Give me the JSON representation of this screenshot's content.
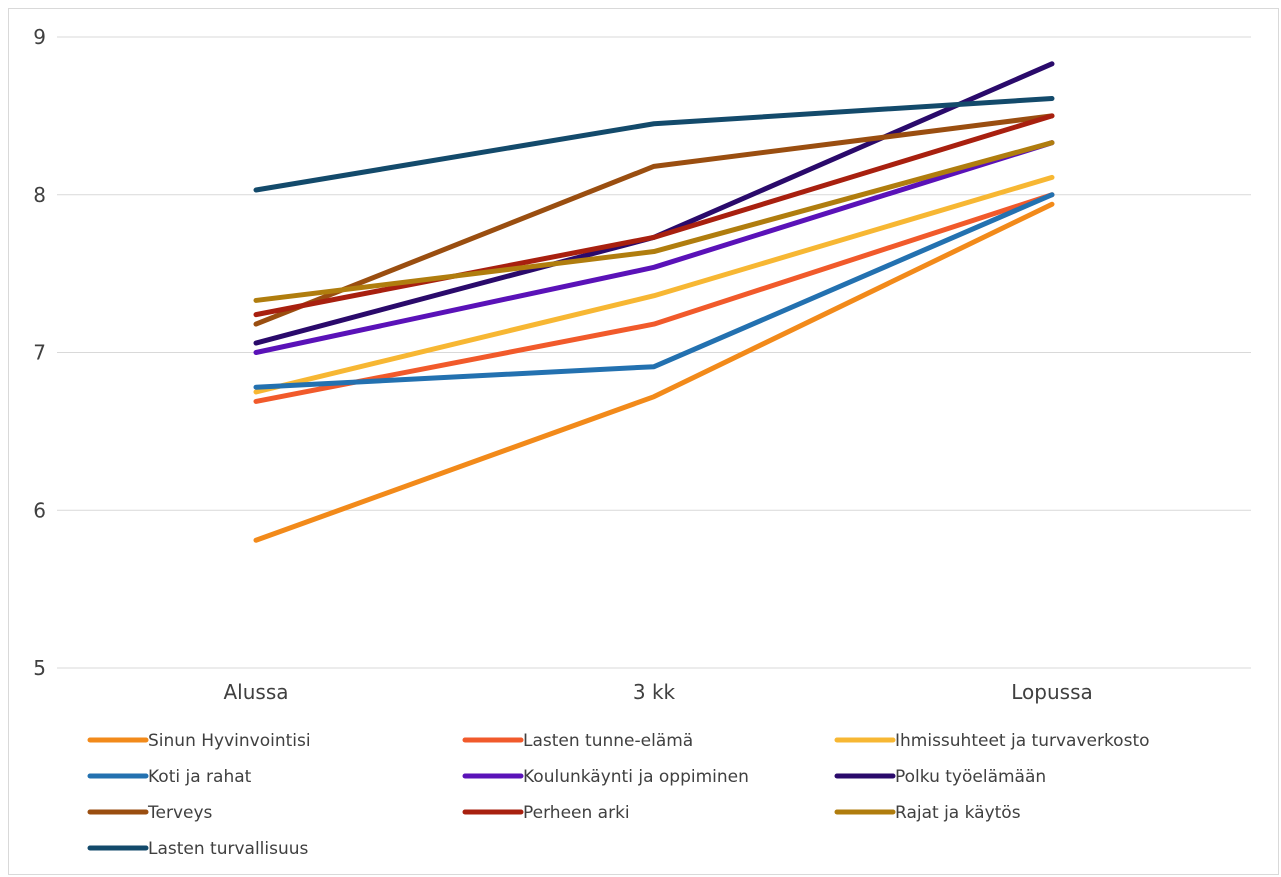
{
  "chart_data": {
    "type": "line",
    "title": "",
    "xlabel": "",
    "ylabel": "",
    "categories": [
      "Alussa",
      "3 kk",
      "Lopussa"
    ],
    "ylim": [
      5,
      9
    ],
    "yticks": [
      5,
      6,
      7,
      8,
      9
    ],
    "grid": true,
    "legend_position": "bottom",
    "series": [
      {
        "name": "Sinun Hyvinvointisi",
        "color": "#f28a1a",
        "values": [
          5.81,
          6.72,
          7.94
        ]
      },
      {
        "name": "Lasten tunne-elämä",
        "color": "#f15a2b",
        "values": [
          6.69,
          7.18,
          8.0
        ]
      },
      {
        "name": "Ihmissuhteet ja turvaverkosto",
        "color": "#f7b733",
        "values": [
          6.75,
          7.36,
          8.11
        ]
      },
      {
        "name": "Koti ja rahat",
        "color": "#2371b0",
        "values": [
          6.78,
          6.91,
          8.0
        ]
      },
      {
        "name": "Koulunkäynti ja oppiminen",
        "color": "#5a12b8",
        "values": [
          7.0,
          7.54,
          8.33
        ]
      },
      {
        "name": "Polku työelämään",
        "color": "#2a0a6b",
        "values": [
          7.06,
          7.73,
          8.83
        ]
      },
      {
        "name": "Terveys",
        "color": "#9a4e10",
        "values": [
          7.18,
          8.18,
          8.5
        ]
      },
      {
        "name": "Perheen arki",
        "color": "#a8200f",
        "values": [
          7.24,
          7.73,
          8.5
        ]
      },
      {
        "name": "Rajat ja käytös",
        "color": "#b07d0e",
        "values": [
          7.33,
          7.64,
          8.33
        ]
      },
      {
        "name": "Lasten turvallisuus",
        "color": "#134a6b",
        "values": [
          8.03,
          8.45,
          8.61
        ]
      }
    ]
  }
}
